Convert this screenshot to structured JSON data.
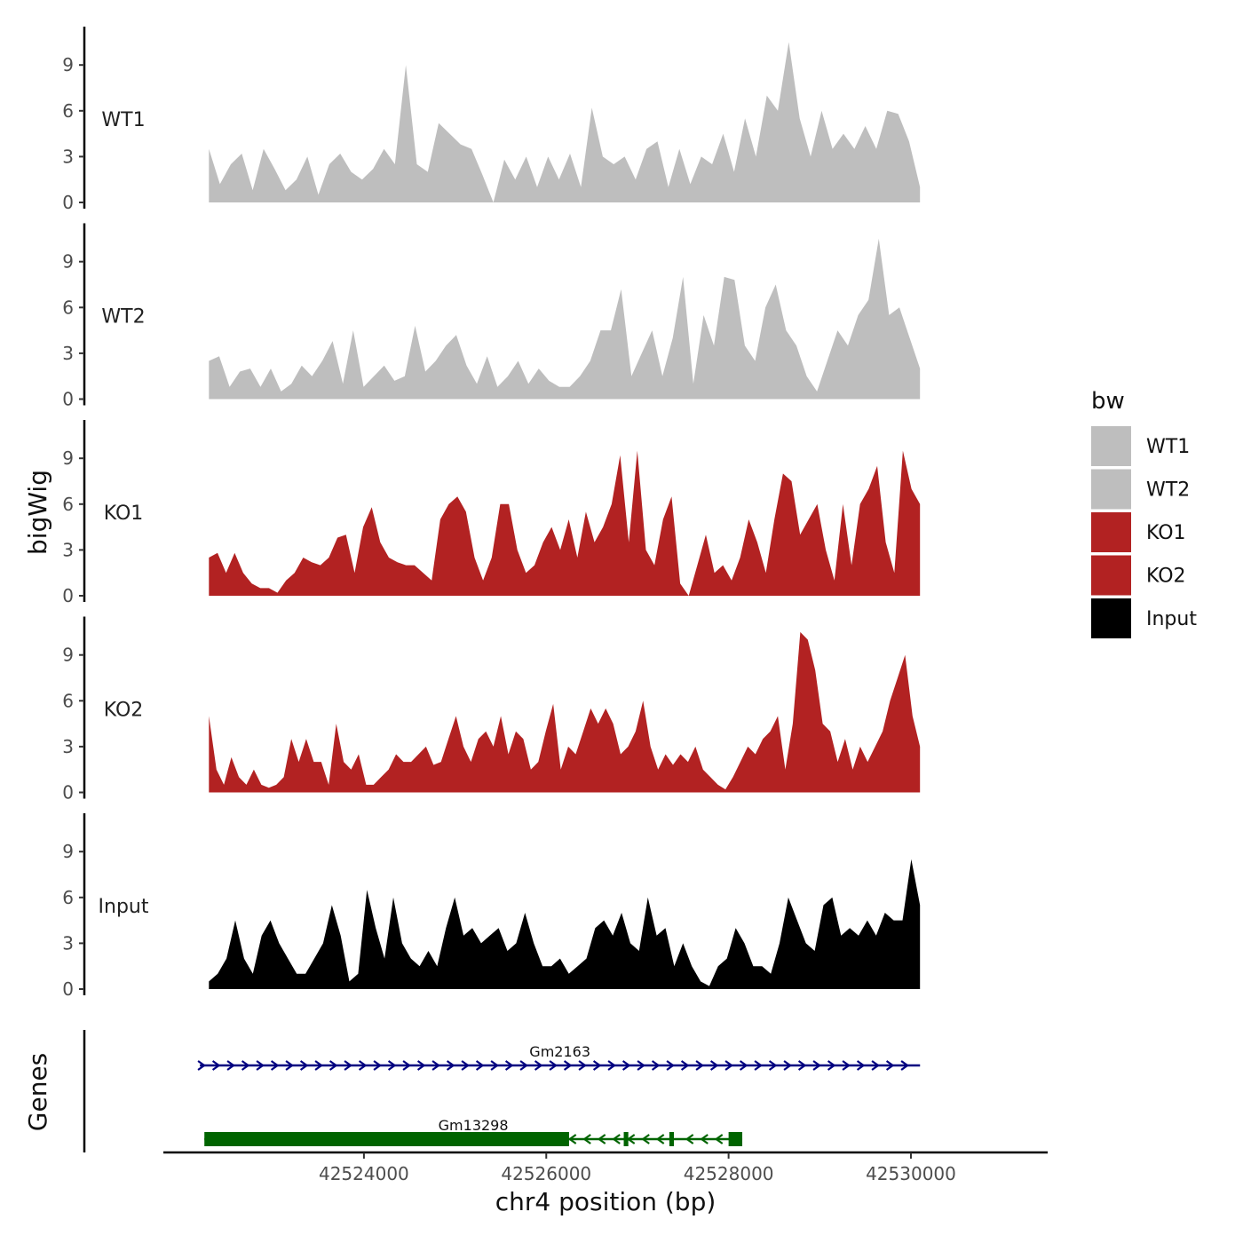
{
  "chart_data": {
    "type": "area",
    "chromosome": "chr4",
    "ylabel": "bigWig",
    "genes_label": "Genes",
    "xlabel": "chr4 position (bp)",
    "xlim": [
      42521800,
      42531500
    ],
    "x_ticks": [
      42524000,
      42526000,
      42528000,
      42530000
    ],
    "x_tick_labels": [
      "42524000",
      "42526000",
      "42528000",
      "42530000"
    ],
    "ylim": [
      0,
      11.5
    ],
    "y_ticks": [
      0,
      3,
      6,
      9
    ],
    "y_tick_labels": [
      "0",
      "3",
      "6",
      "9"
    ],
    "track_start": 42522300,
    "track_end": 42530100,
    "bin_size": 200,
    "tracks": [
      {
        "name": "WT1",
        "color": "#bebebe",
        "values": [
          3.5,
          1.2,
          2.5,
          3.2,
          0.8,
          3.5,
          2.2,
          0.8,
          1.5,
          3.0,
          0.5,
          2.5,
          3.2,
          2.0,
          1.5,
          2.2,
          3.5,
          2.5,
          9.0,
          2.5,
          2.0,
          5.2,
          4.5,
          3.8,
          3.5,
          1.8,
          0,
          2.8,
          1.5,
          3.0,
          1.0,
          3.0,
          1.5,
          3.2,
          1.0,
          6.2,
          3.0,
          2.5,
          3.0,
          1.5,
          3.5,
          4.0,
          1.0,
          3.5,
          1.2,
          3.0,
          2.5,
          4.5,
          2.0,
          5.5,
          3.0,
          7.0,
          6.0,
          10.5,
          5.5,
          3.0,
          6.0,
          3.5,
          4.5,
          3.5,
          5.0,
          3.5,
          6.0,
          5.8,
          4.0,
          1.0
        ]
      },
      {
        "name": "WT2",
        "color": "#bebebe",
        "values": [
          2.5,
          2.8,
          0.8,
          1.8,
          2.0,
          0.8,
          2.0,
          0.5,
          1.0,
          2.2,
          1.5,
          2.5,
          3.8,
          1.0,
          4.5,
          0.8,
          1.5,
          2.2,
          1.2,
          1.5,
          4.8,
          1.8,
          2.5,
          3.5,
          4.2,
          2.2,
          1.0,
          2.8,
          0.8,
          1.5,
          2.5,
          1.0,
          2.0,
          1.2,
          0.8,
          0.8,
          1.5,
          2.5,
          4.5,
          4.5,
          7.2,
          1.5,
          3.0,
          4.5,
          1.5,
          4.0,
          8.0,
          1.0,
          5.5,
          3.5,
          8.0,
          7.8,
          3.5,
          2.5,
          6.0,
          7.5,
          4.5,
          3.5,
          1.5,
          0.5,
          2.5,
          4.5,
          3.5,
          5.5,
          6.5,
          10.5,
          5.5,
          6.0,
          4.0,
          2.0
        ]
      },
      {
        "name": "KO1",
        "color": "#b22222",
        "values": [
          2.5,
          2.8,
          1.5,
          2.8,
          1.5,
          0.8,
          0.5,
          0.5,
          0.2,
          1.0,
          1.5,
          2.5,
          2.2,
          2.0,
          2.5,
          3.8,
          4.0,
          1.5,
          4.5,
          5.8,
          3.5,
          2.5,
          2.2,
          2.0,
          2.0,
          1.5,
          1.0,
          5.0,
          6.0,
          6.5,
          5.5,
          2.5,
          1.0,
          2.5,
          6.0,
          6.0,
          3.0,
          1.5,
          2.0,
          3.5,
          4.5,
          3.0,
          5.0,
          2.5,
          5.5,
          3.5,
          4.5,
          6.0,
          9.2,
          3.5,
          9.5,
          3.0,
          2.0,
          5.0,
          6.5,
          0.8,
          0,
          2.0,
          4.0,
          1.5,
          2.0,
          1.0,
          2.5,
          5.0,
          3.5,
          1.5,
          5.0,
          8.0,
          7.5,
          4.0,
          5.0,
          6.0,
          3.0,
          1.0,
          6.0,
          2.0,
          6.0,
          7.0,
          8.5,
          3.5,
          1.5,
          9.5,
          7.0,
          6.0
        ]
      },
      {
        "name": "KO2",
        "color": "#b22222",
        "values": [
          5.0,
          1.5,
          0.5,
          2.3,
          1.0,
          0.5,
          1.5,
          0.5,
          0.3,
          0.5,
          1.0,
          3.5,
          2.0,
          3.5,
          2.0,
          2.0,
          0.5,
          4.5,
          2.0,
          1.5,
          2.5,
          0.5,
          0.5,
          1.0,
          1.5,
          2.5,
          2.0,
          2.0,
          2.5,
          3.0,
          1.8,
          2.0,
          3.5,
          5.0,
          3.0,
          2.0,
          3.5,
          4.0,
          3.0,
          5.0,
          2.5,
          4.0,
          3.5,
          1.5,
          2.0,
          4.0,
          5.8,
          1.5,
          3.0,
          2.5,
          4.0,
          5.5,
          4.5,
          5.5,
          4.5,
          2.5,
          3.0,
          4.0,
          6.0,
          3.0,
          1.5,
          2.5,
          1.8,
          2.5,
          2.0,
          3.0,
          1.5,
          1.0,
          0.5,
          0.2,
          1.0,
          2.0,
          3.0,
          2.5,
          3.5,
          4.0,
          5.0,
          1.5,
          4.5,
          10.5,
          10.0,
          8.0,
          4.5,
          4.0,
          2.0,
          3.5,
          1.5,
          3.0,
          2.0,
          3.0,
          4.0,
          6.0,
          7.5,
          9.0,
          5.0,
          3.0
        ]
      },
      {
        "name": "Input",
        "color": "#000000",
        "values": [
          0.5,
          1.0,
          2.0,
          4.5,
          2.0,
          1.0,
          3.5,
          4.5,
          3.0,
          2.0,
          1.0,
          1.0,
          2.0,
          3.0,
          5.5,
          3.5,
          0.5,
          1.0,
          6.5,
          4.0,
          2.0,
          6.0,
          3.0,
          2.0,
          1.5,
          2.5,
          1.5,
          4.0,
          6.0,
          3.5,
          4.0,
          3.0,
          3.5,
          4.0,
          2.5,
          3.0,
          5.0,
          3.0,
          1.5,
          1.5,
          2.0,
          1.0,
          1.5,
          2.0,
          4.0,
          4.5,
          3.5,
          5.0,
          3.0,
          2.5,
          6.0,
          3.5,
          4.0,
          1.5,
          3.0,
          1.5,
          0.5,
          0.2,
          1.5,
          2.0,
          4.0,
          3.0,
          1.5,
          1.5,
          1.0,
          3.0,
          6.0,
          4.5,
          3.0,
          2.5,
          5.5,
          6.0,
          3.5,
          4.0,
          3.5,
          4.5,
          3.5,
          5.0,
          4.5,
          4.5,
          8.5,
          5.5
        ]
      }
    ],
    "genes": [
      {
        "name": "Gm2163",
        "strand": "+",
        "color": "#000080",
        "start": 42522200,
        "end": 42530100,
        "exons": []
      },
      {
        "name": "Gm13298",
        "strand": "-",
        "color": "#006400",
        "start": 42522250,
        "end": 42528150,
        "exons": [
          [
            42522250,
            42526250
          ],
          [
            42526850,
            42526900
          ],
          [
            42527350,
            42527400
          ],
          [
            42528000,
            42528150
          ]
        ]
      }
    ],
    "legend": {
      "title": "bw",
      "position": "right",
      "entries": [
        {
          "label": "WT1",
          "color": "#bebebe"
        },
        {
          "label": "WT2",
          "color": "#bebebe"
        },
        {
          "label": "KO1",
          "color": "#b22222"
        },
        {
          "label": "KO2",
          "color": "#b22222"
        },
        {
          "label": "Input",
          "color": "#000000"
        }
      ]
    }
  }
}
